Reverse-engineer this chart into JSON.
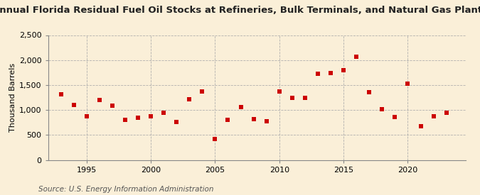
{
  "title": "Annual Florida Residual Fuel Oil Stocks at Refineries, Bulk Terminals, and Natural Gas Plants",
  "ylabel": "Thousand Barrels",
  "source": "Source: U.S. Energy Information Administration",
  "background_color": "#faefd8",
  "plot_bg_color": "#faefd8",
  "marker_color": "#cc0000",
  "grid_color": "#aaaaaa",
  "years": [
    1993,
    1994,
    1995,
    1996,
    1997,
    1998,
    1999,
    2000,
    2001,
    2002,
    2003,
    2004,
    2005,
    2006,
    2007,
    2008,
    2009,
    2010,
    2011,
    2012,
    2013,
    2014,
    2015,
    2016,
    2017,
    2018,
    2019,
    2020,
    2021,
    2022,
    2023
  ],
  "values": [
    1310,
    1100,
    880,
    1200,
    1080,
    800,
    840,
    870,
    940,
    760,
    1220,
    1370,
    420,
    800,
    1060,
    820,
    780,
    1370,
    1240,
    1240,
    1720,
    1740,
    1800,
    2060,
    1360,
    1010,
    860,
    1530,
    670,
    880,
    940
  ],
  "ylim": [
    0,
    2500
  ],
  "yticks": [
    0,
    500,
    1000,
    1500,
    2000,
    2500
  ],
  "ytick_labels": [
    "0",
    "500",
    "1,000",
    "1,500",
    "2,000",
    "2,500"
  ],
  "xtick_years": [
    1995,
    2000,
    2005,
    2010,
    2015,
    2020
  ],
  "xlim": [
    1992.0,
    2024.5
  ],
  "title_fontsize": 9.5,
  "axis_fontsize": 8,
  "source_fontsize": 7.5
}
